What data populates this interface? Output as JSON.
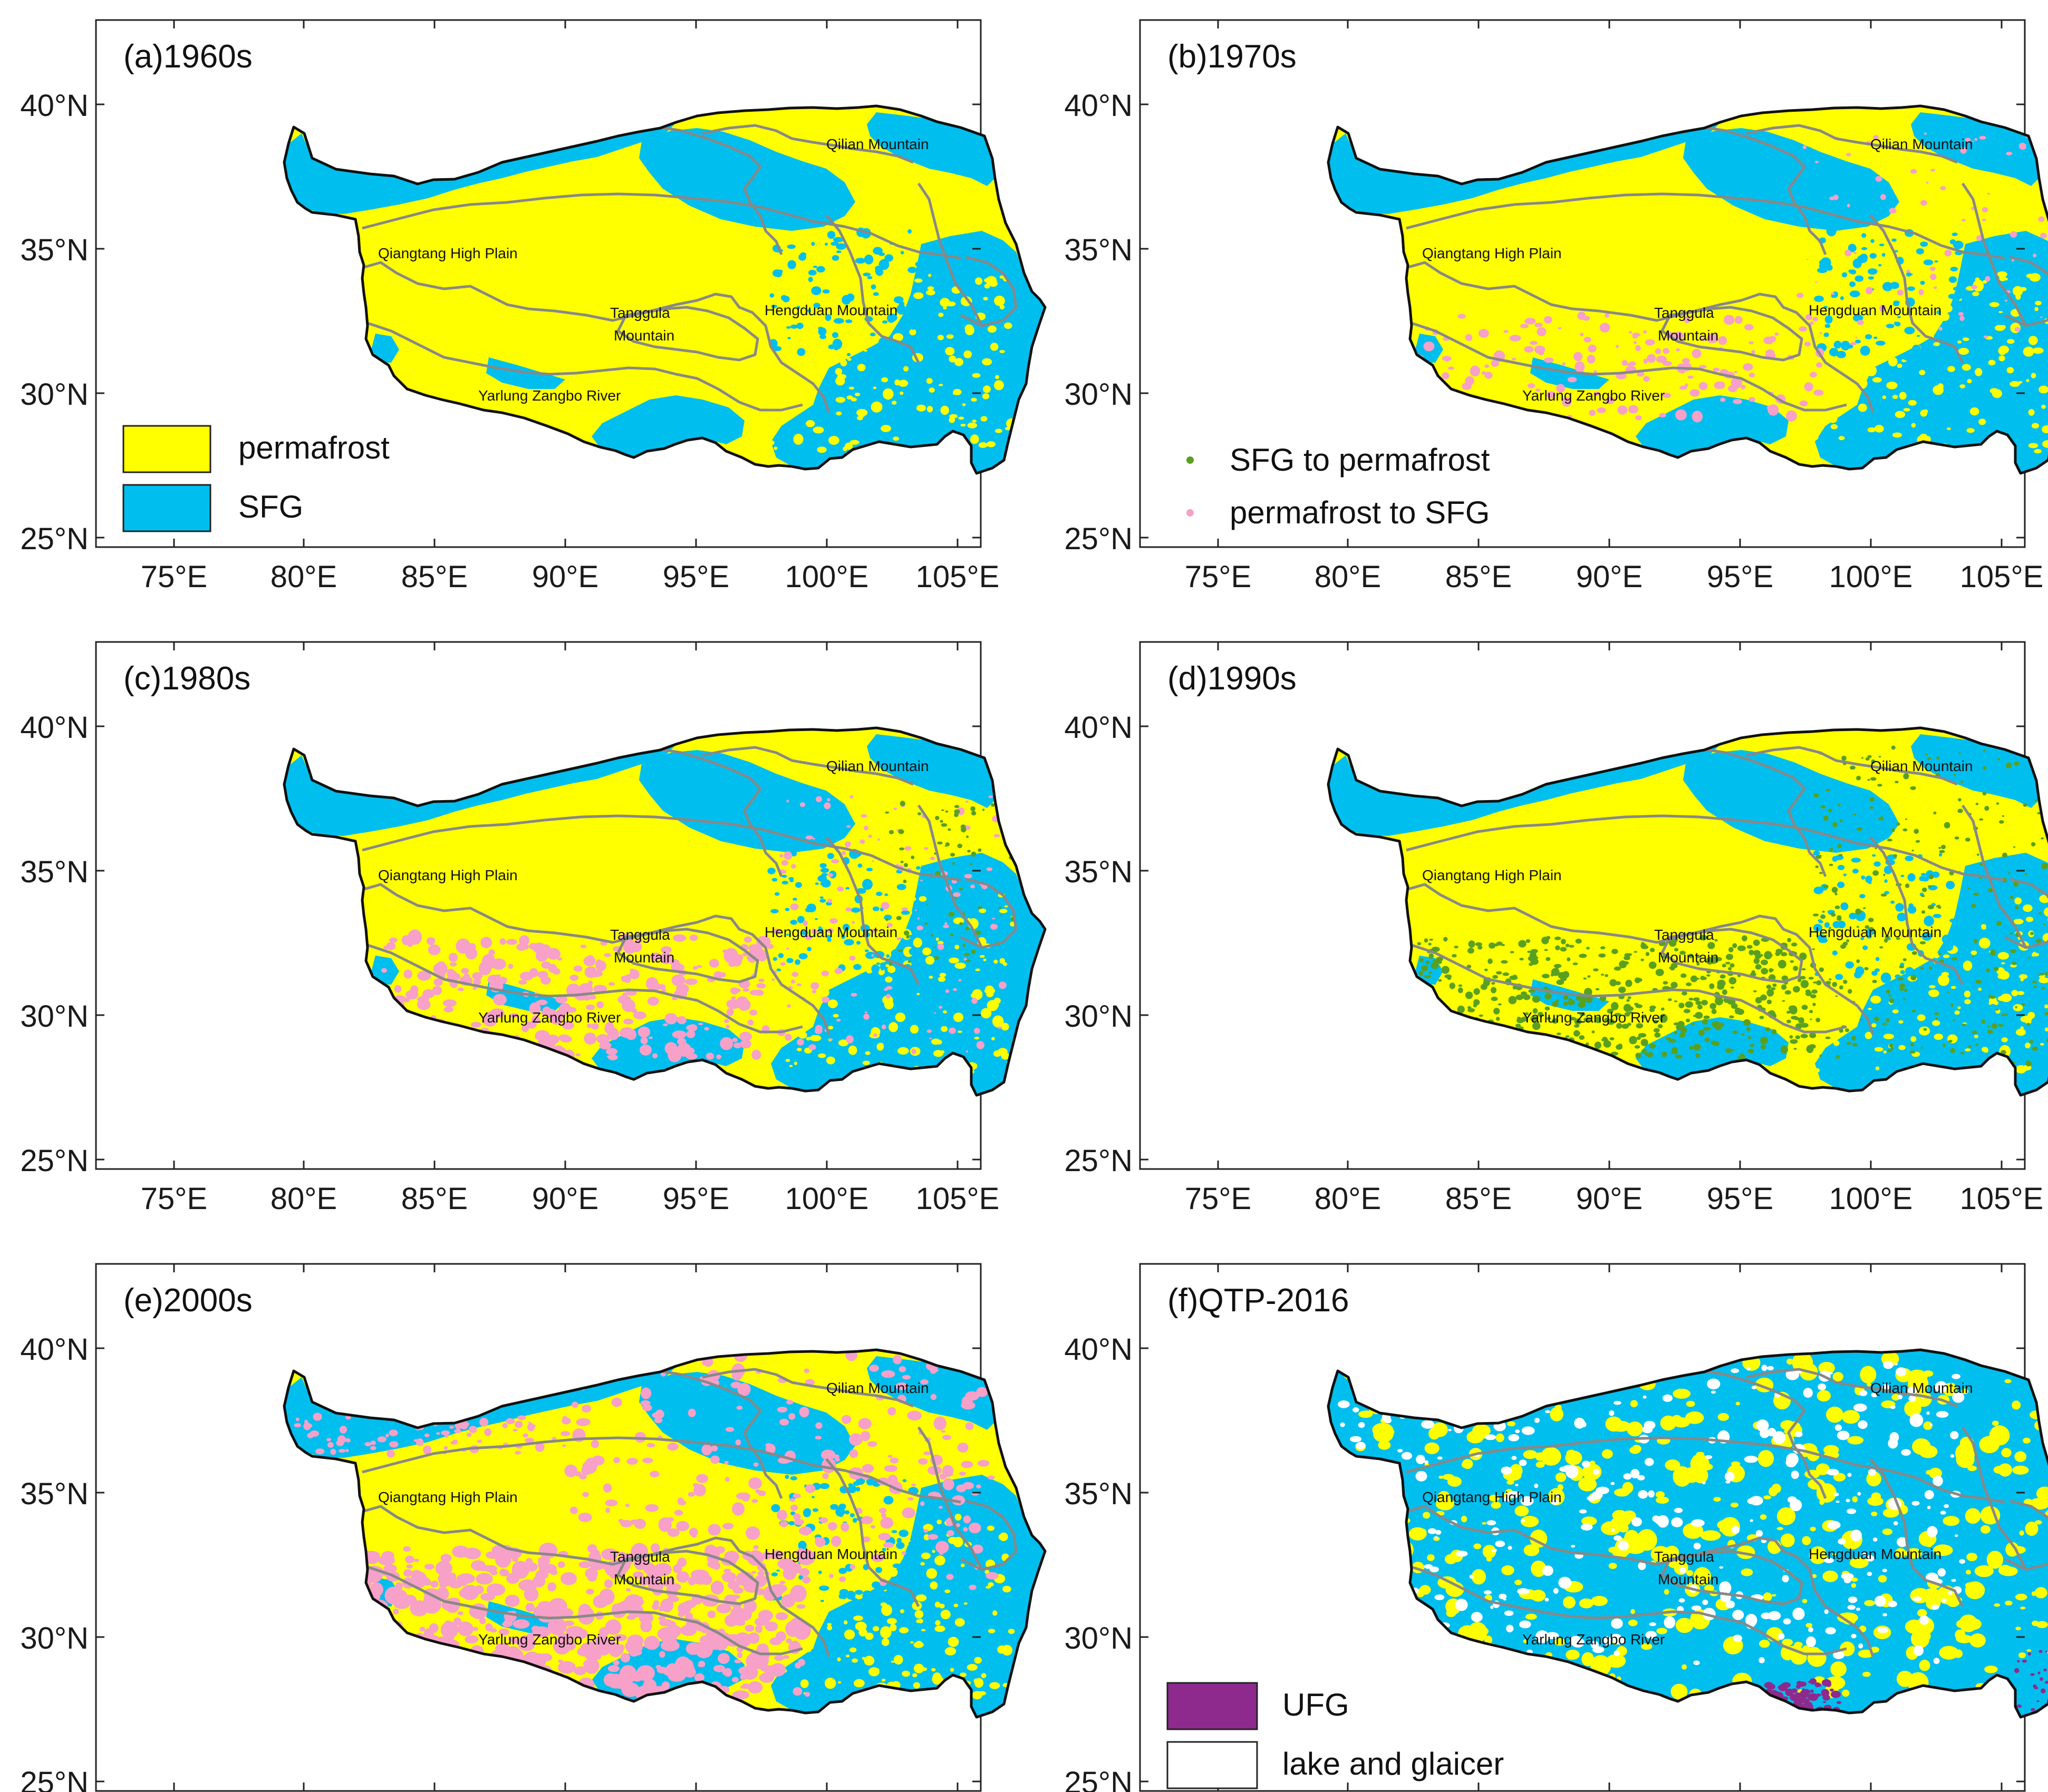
{
  "figure": {
    "colors": {
      "permafrost": "#ffff00",
      "sfg": "#00bfef",
      "sfg_to_permafrost": "#5aa020",
      "permafrost_to_sfg": "#f7a0c8",
      "ufg": "#8e2a8e",
      "lake_glacier": "#ffffff",
      "boundary": "#888888",
      "outline": "#111111"
    },
    "axes": {
      "lon_ticks": [
        "75°E",
        "80°E",
        "85°E",
        "90°E",
        "95°E",
        "100°E",
        "105°E"
      ],
      "lat_ticks": [
        "25°N",
        "30°N",
        "35°N",
        "40°N"
      ]
    },
    "place_labels": {
      "qilian": "Qilian Mountain",
      "qiangtang": "Qiangtang High Plain",
      "tanggula_1": "Tanggula",
      "tanggula_2": "Mountain",
      "hengduan": "Hengduan Mountain",
      "yarlung": "Yarlung Zangbo River"
    },
    "panels": [
      {
        "id": "a",
        "title": "(a)1960s",
        "mode": "base",
        "legend": [
          {
            "label": "permafrost",
            "swatch": "box",
            "color_key": "permafrost"
          },
          {
            "label": "SFG",
            "swatch": "box",
            "color_key": "sfg"
          }
        ]
      },
      {
        "id": "b",
        "title": "(b)1970s",
        "mode": "light-degradation",
        "legend": [
          {
            "label": "SFG to permafrost",
            "swatch": "dot",
            "color_key": "sfg_to_permafrost"
          },
          {
            "label": "permafrost to SFG",
            "swatch": "dot",
            "color_key": "permafrost_to_sfg"
          }
        ]
      },
      {
        "id": "c",
        "title": "(c)1980s",
        "mode": "southern-degradation",
        "legend": []
      },
      {
        "id": "d",
        "title": "(d)1990s",
        "mode": "aggradation",
        "legend": []
      },
      {
        "id": "e",
        "title": "(e)2000s",
        "mode": "strong-degradation",
        "legend": []
      },
      {
        "id": "f",
        "title": "(f)QTP-2016",
        "mode": "qtp2016",
        "legend": [
          {
            "label": "UFG",
            "swatch": "box",
            "color_key": "ufg"
          },
          {
            "label": "lake and glaicer",
            "swatch": "box",
            "color_key": "lake_glacier"
          }
        ]
      }
    ]
  }
}
